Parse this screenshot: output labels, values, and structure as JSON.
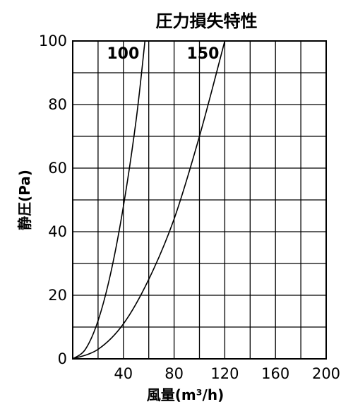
{
  "chart_data": {
    "type": "line",
    "title": "圧力損失特性",
    "xlabel": "風量(m³/h)",
    "ylabel": "静圧(Pa)",
    "xlim": [
      0,
      200
    ],
    "ylim": [
      0,
      100
    ],
    "xticks": [
      0,
      40,
      80,
      120,
      160,
      200
    ],
    "xtick_labels": [
      "",
      "40",
      "80",
      "120",
      "160",
      "200"
    ],
    "yticks": [
      0,
      20,
      40,
      60,
      80,
      100
    ],
    "ytick_labels": [
      "0",
      "20",
      "40",
      "60",
      "80",
      "100"
    ],
    "grid": true,
    "grid_step_x": 20,
    "grid_step_y": 10,
    "series": [
      {
        "name": "100",
        "x": [
          0,
          10,
          20,
          30,
          40,
          50,
          57
        ],
        "y": [
          0,
          3,
          12,
          27,
          48,
          75,
          100
        ]
      },
      {
        "name": "150",
        "x": [
          0,
          20,
          40,
          60,
          80,
          100,
          120
        ],
        "y": [
          0,
          3,
          11,
          25,
          44,
          70,
          100
        ]
      }
    ]
  }
}
